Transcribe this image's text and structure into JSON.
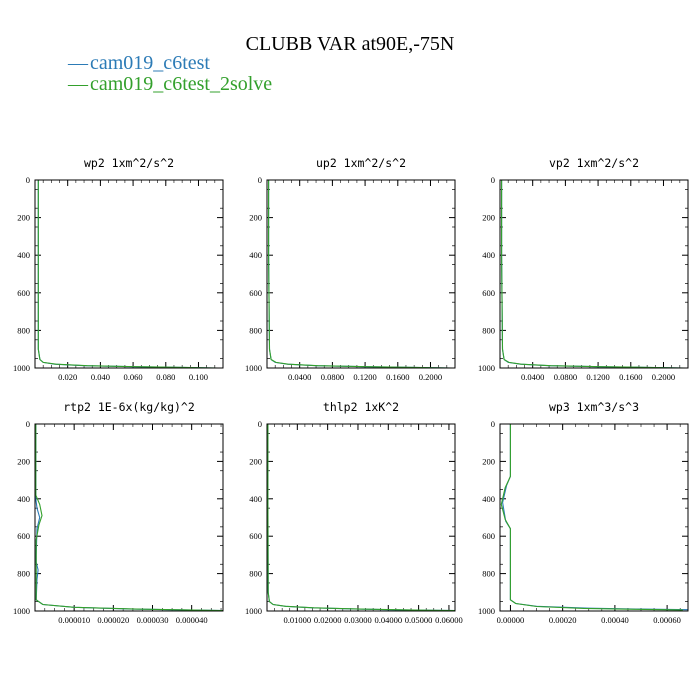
{
  "title": "CLUBB VAR at90E,-75N",
  "colors": {
    "series1": "#2c7bb6",
    "series2": "#33a02c"
  },
  "legend": [
    {
      "marker": "—",
      "name": "cam019_c6test",
      "color": "#2c7bb6"
    },
    {
      "marker": "—",
      "name": "cam019_c6test_2solve",
      "color": "#33a02c"
    }
  ],
  "chart_data": [
    {
      "type": "line",
      "title": "wp2  1xm^2/s^2",
      "xlim": [
        0,
        0.115
      ],
      "ylim": [
        1000,
        0
      ],
      "xticks": [
        "0.020",
        "0.040",
        "0.060",
        "0.080",
        "0.100"
      ],
      "yticks": [
        "0",
        "200",
        "400",
        "600",
        "800",
        "1000"
      ],
      "series": [
        {
          "name": "cam019_c6test",
          "x": [
            0.002,
            0.002,
            0.002,
            0.003,
            0.005,
            0.012,
            0.03,
            0.06,
            0.09,
            0.11
          ],
          "y": [
            0,
            400,
            900,
            955,
            970,
            980,
            988,
            993,
            997,
            1000
          ]
        },
        {
          "name": "cam019_c6test_2solve",
          "x": [
            0.002,
            0.002,
            0.002,
            0.003,
            0.005,
            0.013,
            0.032,
            0.062,
            0.092,
            0.112
          ],
          "y": [
            0,
            400,
            900,
            955,
            970,
            980,
            988,
            993,
            997,
            1000
          ]
        }
      ]
    },
    {
      "type": "line",
      "title": "up2  1xm^2/s^2",
      "xlim": [
        0,
        0.23
      ],
      "ylim": [
        1000,
        0
      ],
      "xticks": [
        "0.0400",
        "0.0800",
        "0.1200",
        "0.1600",
        "0.2000"
      ],
      "yticks": [
        "0",
        "200",
        "400",
        "600",
        "800",
        "1000"
      ],
      "series": [
        {
          "name": "cam019_c6test",
          "x": [
            0.002,
            0.002,
            0.003,
            0.005,
            0.01,
            0.025,
            0.06,
            0.12,
            0.18,
            0.225
          ],
          "y": [
            0,
            400,
            900,
            955,
            970,
            980,
            988,
            993,
            997,
            1000
          ]
        },
        {
          "name": "cam019_c6test_2solve",
          "x": [
            0.002,
            0.002,
            0.003,
            0.005,
            0.011,
            0.026,
            0.062,
            0.122,
            0.182,
            0.227
          ],
          "y": [
            0,
            400,
            900,
            955,
            970,
            980,
            988,
            993,
            997,
            1000
          ]
        }
      ]
    },
    {
      "type": "line",
      "title": "vp2  1xm^2/s^2",
      "xlim": [
        0,
        0.23
      ],
      "ylim": [
        1000,
        0
      ],
      "xticks": [
        "0.0400",
        "0.0800",
        "0.1200",
        "0.1600",
        "0.2000"
      ],
      "yticks": [
        "0",
        "200",
        "400",
        "600",
        "800",
        "1000"
      ],
      "series": [
        {
          "name": "cam019_c6test",
          "x": [
            0.002,
            0.002,
            0.003,
            0.005,
            0.01,
            0.025,
            0.06,
            0.12,
            0.18,
            0.225
          ],
          "y": [
            0,
            400,
            900,
            955,
            970,
            980,
            988,
            993,
            997,
            1000
          ]
        },
        {
          "name": "cam019_c6test_2solve",
          "x": [
            0.002,
            0.002,
            0.003,
            0.005,
            0.011,
            0.026,
            0.062,
            0.122,
            0.182,
            0.227
          ],
          "y": [
            0,
            400,
            900,
            955,
            970,
            980,
            988,
            993,
            997,
            1000
          ]
        }
      ]
    },
    {
      "type": "line",
      "title": "rtp2  1E-6x(kg/kg)^2",
      "xlim": [
        0,
        4.8e-05
      ],
      "ylim": [
        1000,
        0
      ],
      "xticks": [
        "0.000010",
        "0.000020",
        "0.000030",
        "0.000040"
      ],
      "yticks": [
        "0",
        "200",
        "400",
        "600",
        "800",
        "1000"
      ],
      "series": [
        {
          "name": "cam019_c6test",
          "x": [
            2e-07,
            2e-07,
            5e-07,
            1.2e-06,
            5e-07,
            3e-07,
            3e-07,
            8e-07,
            5e-07,
            3e-07,
            2e-06,
            1e-05,
            2.5e-05,
            4.8e-05
          ],
          "y": [
            0,
            400,
            450,
            500,
            560,
            700,
            740,
            780,
            830,
            940,
            965,
            980,
            990,
            998
          ]
        },
        {
          "name": "cam019_c6test_2solve",
          "x": [
            2e-07,
            2e-07,
            1.2e-06,
            1.8e-06,
            1e-06,
            3e-07,
            3e-07,
            3e-07,
            3e-07,
            3e-07,
            2e-06,
            1e-05,
            2.6e-05,
            4.8e-05
          ],
          "y": [
            0,
            380,
            430,
            490,
            540,
            620,
            700,
            800,
            880,
            940,
            965,
            980,
            990,
            998
          ]
        }
      ]
    },
    {
      "type": "line",
      "title": "thlp2  1xK^2",
      "xlim": [
        0,
        0.062
      ],
      "ylim": [
        1000,
        0
      ],
      "xticks": [
        "0.01000",
        "0.02000",
        "0.03000",
        "0.04000",
        "0.05000",
        "0.06000"
      ],
      "yticks": [
        "0",
        "200",
        "400",
        "600",
        "800",
        "1000"
      ],
      "series": [
        {
          "name": "cam019_c6test",
          "x": [
            0.0003,
            0.0003,
            0.0004,
            0.0008,
            0.002,
            0.006,
            0.015,
            0.03,
            0.048,
            0.062
          ],
          "y": [
            0,
            400,
            900,
            950,
            965,
            975,
            983,
            990,
            995,
            998
          ]
        },
        {
          "name": "cam019_c6test_2solve",
          "x": [
            0.0003,
            0.0003,
            0.0004,
            0.0008,
            0.002,
            0.0062,
            0.0155,
            0.031,
            0.049,
            0.062
          ],
          "y": [
            0,
            400,
            900,
            950,
            965,
            975,
            983,
            990,
            995,
            998
          ]
        }
      ]
    },
    {
      "type": "line",
      "title": "wp3  1xm^3/s^3",
      "xlim": [
        -4e-05,
        0.00068
      ],
      "ylim": [
        1000,
        0
      ],
      "xticks": [
        "0.00000",
        "0.00020",
        "0.00040",
        "0.00060"
      ],
      "yticks": [
        "0",
        "200",
        "400",
        "600",
        "800",
        "1000"
      ],
      "series": [
        {
          "name": "cam019_c6test",
          "x": [
            0.0,
            0.0,
            -1.5e-05,
            -3e-05,
            -1.8e-05,
            0.0,
            0.0,
            0.0,
            2e-05,
            0.0001,
            0.0003,
            0.0005,
            0.00068
          ],
          "y": [
            0,
            280,
            330,
            420,
            520,
            560,
            700,
            940,
            960,
            975,
            985,
            990,
            993
          ]
        },
        {
          "name": "cam019_c6test_2solve",
          "x": [
            0.0,
            0.0,
            -2e-05,
            -3.5e-05,
            -2e-05,
            0.0,
            0.0,
            0.0,
            2e-05,
            0.0001,
            0.00028,
            0.00048,
            0.00066
          ],
          "y": [
            0,
            280,
            340,
            430,
            510,
            560,
            700,
            940,
            960,
            976,
            986,
            991,
            994
          ]
        }
      ]
    }
  ]
}
